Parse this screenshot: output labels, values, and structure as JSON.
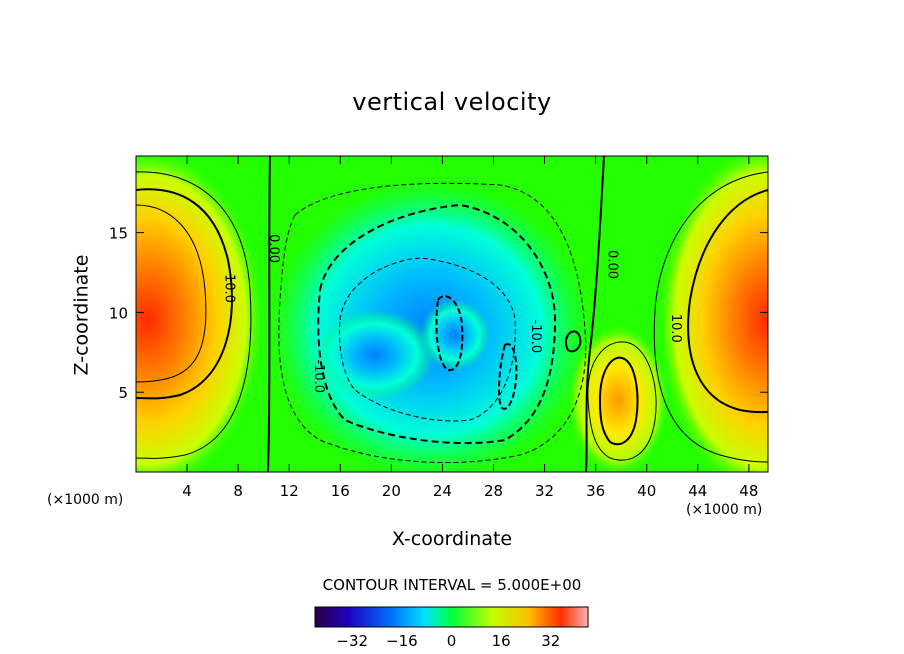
{
  "chart_data": {
    "type": "heatmap",
    "title": "vertical velocity",
    "xlabel": "X-coordinate",
    "ylabel": "Z-coordinate",
    "x_unit_label": "(×1000 m)",
    "x_ticks": [
      4,
      8,
      12,
      16,
      20,
      24,
      28,
      32,
      36,
      40,
      44,
      48
    ],
    "y_ticks": [
      5,
      10,
      15
    ],
    "xlim": [
      0,
      49.5
    ],
    "ylim": [
      0,
      19.8
    ],
    "contour_interval_text": "CONTOUR INTERVAL = 5.000E+00",
    "contour_labels": [
      {
        "text": "0.00",
        "x": 10.5,
        "y": 14
      },
      {
        "text": "10.0",
        "x": 7,
        "y": 11.5
      },
      {
        "text": "0.00",
        "x": 37,
        "y": 13
      },
      {
        "text": "10.0",
        "x": 42,
        "y": 9
      },
      {
        "text": "-10.0",
        "x": 31,
        "y": 8.5
      },
      {
        "text": "-10.0",
        "x": 14,
        "y": 6
      }
    ],
    "colorbar": {
      "ticks": [
        -32,
        -16,
        0,
        16,
        32
      ],
      "tick_labels": [
        "−32",
        "−16",
        "0",
        "16",
        "32"
      ],
      "range": [
        -44,
        44
      ]
    },
    "features": [
      {
        "label": "updraft core (left)",
        "x": 0.5,
        "y": 10,
        "value": 38
      },
      {
        "label": "updraft core (right)",
        "x": 49,
        "y": 10,
        "value": 34
      },
      {
        "label": "downdraft core",
        "x": 24,
        "y": 9,
        "value": -24
      },
      {
        "label": "downdraft secondary",
        "x": 18.5,
        "y": 7.5,
        "value": -18
      },
      {
        "label": "updraft cell",
        "x": 38,
        "y": 4.5,
        "value": 18
      }
    ]
  }
}
